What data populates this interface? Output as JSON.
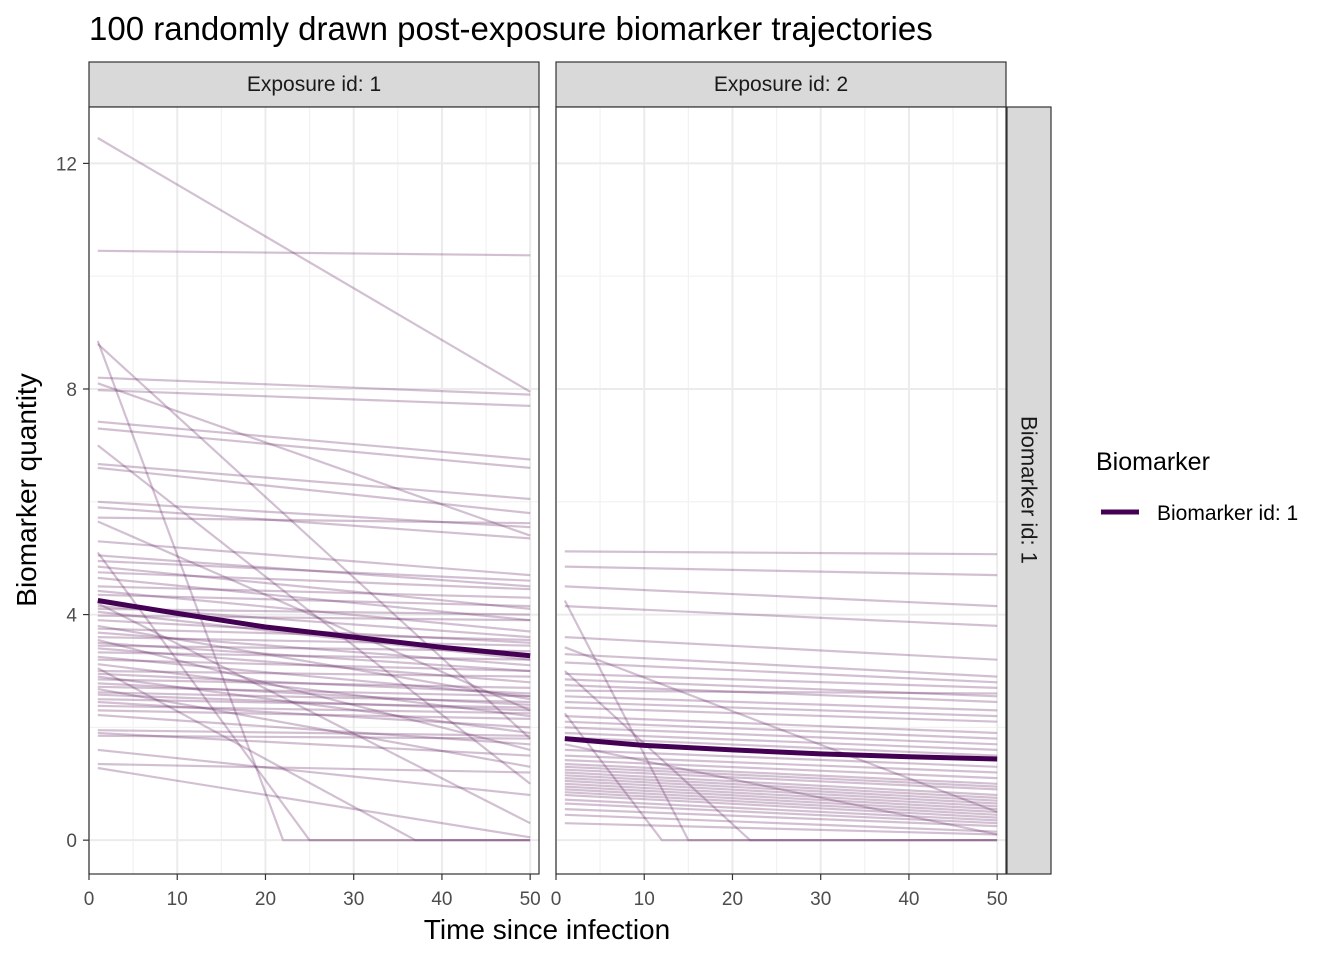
{
  "chart_data": {
    "type": "line",
    "title": "100 randomly drawn post-exposure biomarker trajectories",
    "xlabel": "Time since infection",
    "ylabel": "Biomarker quantity",
    "xlim": [
      0,
      51
    ],
    "ylim": [
      -0.6,
      13
    ],
    "x_ticks": [
      0,
      10,
      20,
      30,
      40,
      50
    ],
    "y_ticks": [
      0,
      4,
      8,
      12
    ],
    "grid": true,
    "legend": {
      "title": "Biomarker",
      "position": "right",
      "entries": [
        "Biomarker id: 1"
      ]
    },
    "row_strip": "Biomarker id: 1",
    "colors": {
      "trajectory": "#6b2d6b",
      "mean": "#440154",
      "strip": "#d9d9d9"
    },
    "panels": [
      {
        "strip": "Exposure id: 1",
        "mean": {
          "x": [
            1,
            10,
            20,
            30,
            40,
            50
          ],
          "y": [
            4.25,
            4.02,
            3.78,
            3.6,
            3.42,
            3.27
          ]
        },
        "trajectories": [
          {
            "x": [
              1,
              50
            ],
            "y": [
              12.45,
              7.95
            ]
          },
          {
            "x": [
              1,
              50
            ],
            "y": [
              10.45,
              10.37
            ]
          },
          {
            "x": [
              1,
              22,
              50
            ],
            "y": [
              8.85,
              0,
              0
            ]
          },
          {
            "x": [
              1,
              50
            ],
            "y": [
              8.8,
              1.8
            ]
          },
          {
            "x": [
              1,
              50
            ],
            "y": [
              8.2,
              7.9
            ]
          },
          {
            "x": [
              1,
              50
            ],
            "y": [
              8.1,
              5.4
            ]
          },
          {
            "x": [
              1,
              50
            ],
            "y": [
              7.98,
              7.7
            ]
          },
          {
            "x": [
              1,
              50
            ],
            "y": [
              7.42,
              6.75
            ]
          },
          {
            "x": [
              1,
              50
            ],
            "y": [
              7.3,
              6.6
            ]
          },
          {
            "x": [
              1,
              50
            ],
            "y": [
              7.0,
              1.0
            ]
          },
          {
            "x": [
              1,
              50
            ],
            "y": [
              6.67,
              6.05
            ]
          },
          {
            "x": [
              1,
              50
            ],
            "y": [
              6.6,
              5.8
            ]
          },
          {
            "x": [
              1,
              50
            ],
            "y": [
              6.0,
              5.55
            ]
          },
          {
            "x": [
              1,
              50
            ],
            "y": [
              5.9,
              5.35
            ]
          },
          {
            "x": [
              1,
              50
            ],
            "y": [
              5.72,
              5.62
            ]
          },
          {
            "x": [
              1,
              50
            ],
            "y": [
              5.65,
              2.3
            ]
          },
          {
            "x": [
              1,
              50
            ],
            "y": [
              5.3,
              4.7
            ]
          },
          {
            "x": [
              1,
              25,
              50
            ],
            "y": [
              5.1,
              0,
              0
            ]
          },
          {
            "x": [
              1,
              50
            ],
            "y": [
              5.05,
              4.5
            ]
          },
          {
            "x": [
              1,
              50
            ],
            "y": [
              4.95,
              4.6
            ]
          },
          {
            "x": [
              1,
              50
            ],
            "y": [
              4.85,
              4.1
            ]
          },
          {
            "x": [
              1,
              50
            ],
            "y": [
              4.75,
              4.45
            ]
          },
          {
            "x": [
              1,
              50
            ],
            "y": [
              4.65,
              3.9
            ]
          },
          {
            "x": [
              1,
              50
            ],
            "y": [
              4.5,
              4.3
            ]
          },
          {
            "x": [
              1,
              50
            ],
            "y": [
              4.42,
              3.7
            ]
          },
          {
            "x": [
              1,
              50
            ],
            "y": [
              4.35,
              4.15
            ]
          },
          {
            "x": [
              1,
              50
            ],
            "y": [
              4.2,
              0.3
            ]
          },
          {
            "x": [
              1,
              50
            ],
            "y": [
              4.15,
              3.6
            ]
          },
          {
            "x": [
              1,
              50
            ],
            "y": [
              4.1,
              4.0
            ]
          },
          {
            "x": [
              1,
              50
            ],
            "y": [
              4.05,
              3.2
            ]
          },
          {
            "x": [
              1,
              50
            ],
            "y": [
              3.98,
              3.9
            ]
          },
          {
            "x": [
              1,
              50
            ],
            "y": [
              3.9,
              3.5
            ]
          },
          {
            "x": [
              1,
              50
            ],
            "y": [
              3.8,
              2.5
            ]
          },
          {
            "x": [
              1,
              50
            ],
            "y": [
              3.75,
              3.55
            ]
          },
          {
            "x": [
              1,
              50
            ],
            "y": [
              3.68,
              3.1
            ]
          },
          {
            "x": [
              1,
              50
            ],
            "y": [
              3.6,
              3.45
            ]
          },
          {
            "x": [
              1,
              50
            ],
            "y": [
              3.55,
              1.6
            ]
          },
          {
            "x": [
              1,
              50
            ],
            "y": [
              3.5,
              3.0
            ]
          },
          {
            "x": [
              1,
              50
            ],
            "y": [
              3.45,
              3.35
            ]
          },
          {
            "x": [
              1,
              50
            ],
            "y": [
              3.4,
              2.8
            ]
          },
          {
            "x": [
              1,
              50
            ],
            "y": [
              3.33,
              3.2
            ]
          },
          {
            "x": [
              1,
              50
            ],
            "y": [
              3.25,
              2.55
            ]
          },
          {
            "x": [
              1,
              50
            ],
            "y": [
              3.2,
              3.0
            ]
          },
          {
            "x": [
              1,
              50
            ],
            "y": [
              3.12,
              2.2
            ]
          },
          {
            "x": [
              1,
              37,
              50
            ],
            "y": [
              3.05,
              0,
              0
            ]
          },
          {
            "x": [
              1,
              50
            ],
            "y": [
              3.0,
              2.9
            ]
          },
          {
            "x": [
              1,
              50
            ],
            "y": [
              2.95,
              2.6
            ]
          },
          {
            "x": [
              1,
              50
            ],
            "y": [
              2.9,
              1.9
            ]
          },
          {
            "x": [
              1,
              50
            ],
            "y": [
              2.85,
              2.7
            ]
          },
          {
            "x": [
              1,
              50
            ],
            "y": [
              2.78,
              2.4
            ]
          },
          {
            "x": [
              1,
              50
            ],
            "y": [
              2.72,
              2.55
            ]
          },
          {
            "x": [
              1,
              50
            ],
            "y": [
              2.68,
              1.3
            ]
          },
          {
            "x": [
              1,
              50
            ],
            "y": [
              2.62,
              2.45
            ]
          },
          {
            "x": [
              1,
              50
            ],
            "y": [
              2.58,
              2.3
            ]
          },
          {
            "x": [
              1,
              50
            ],
            "y": [
              2.5,
              2.35
            ]
          },
          {
            "x": [
              1,
              50
            ],
            "y": [
              2.45,
              2.0
            ]
          },
          {
            "x": [
              1,
              50
            ],
            "y": [
              2.38,
              2.25
            ]
          },
          {
            "x": [
              1,
              50
            ],
            "y": [
              2.3,
              2.15
            ]
          },
          {
            "x": [
              1,
              50
            ],
            "y": [
              2.22,
              1.7
            ]
          },
          {
            "x": [
              1,
              50
            ],
            "y": [
              1.95,
              1.85
            ]
          },
          {
            "x": [
              1,
              50
            ],
            "y": [
              1.9,
              1.5
            ]
          },
          {
            "x": [
              1,
              50
            ],
            "y": [
              1.85,
              1.8
            ]
          },
          {
            "x": [
              1,
              50
            ],
            "y": [
              1.6,
              0.8
            ]
          },
          {
            "x": [
              1,
              50
            ],
            "y": [
              1.35,
              1.2
            ]
          },
          {
            "x": [
              1,
              50
            ],
            "y": [
              1.28,
              0.05
            ]
          }
        ]
      },
      {
        "strip": "Exposure id: 2",
        "mean": {
          "x": [
            1,
            10,
            20,
            30,
            40,
            50
          ],
          "y": [
            1.8,
            1.68,
            1.6,
            1.53,
            1.48,
            1.44
          ]
        },
        "trajectories": [
          {
            "x": [
              1,
              50
            ],
            "y": [
              5.12,
              5.07
            ]
          },
          {
            "x": [
              1,
              50
            ],
            "y": [
              4.85,
              4.7
            ]
          },
          {
            "x": [
              1,
              50
            ],
            "y": [
              4.5,
              4.15
            ]
          },
          {
            "x": [
              1,
              15,
              50
            ],
            "y": [
              4.25,
              0,
              0
            ]
          },
          {
            "x": [
              1,
              50
            ],
            "y": [
              4.15,
              3.8
            ]
          },
          {
            "x": [
              1,
              50
            ],
            "y": [
              3.6,
              3.2
            ]
          },
          {
            "x": [
              1,
              50
            ],
            "y": [
              3.42,
              0.5
            ]
          },
          {
            "x": [
              1,
              50
            ],
            "y": [
              3.3,
              2.9
            ]
          },
          {
            "x": [
              1,
              50
            ],
            "y": [
              3.15,
              2.8
            ]
          },
          {
            "x": [
              1,
              22,
              50
            ],
            "y": [
              3.0,
              0,
              0
            ]
          },
          {
            "x": [
              1,
              50
            ],
            "y": [
              2.95,
              2.7
            ]
          },
          {
            "x": [
              1,
              50
            ],
            "y": [
              2.85,
              2.55
            ]
          },
          {
            "x": [
              1,
              50
            ],
            "y": [
              2.75,
              2.45
            ]
          },
          {
            "x": [
              1,
              50
            ],
            "y": [
              2.65,
              2.6
            ]
          },
          {
            "x": [
              1,
              50
            ],
            "y": [
              2.55,
              2.3
            ]
          },
          {
            "x": [
              1,
              50
            ],
            "y": [
              2.45,
              2.2
            ]
          },
          {
            "x": [
              1,
              50
            ],
            "y": [
              2.35,
              2.1
            ]
          },
          {
            "x": [
              1,
              12,
              50
            ],
            "y": [
              2.25,
              0,
              0
            ]
          },
          {
            "x": [
              1,
              50
            ],
            "y": [
              2.2,
              1.9
            ]
          },
          {
            "x": [
              1,
              50
            ],
            "y": [
              2.1,
              1.8
            ]
          },
          {
            "x": [
              1,
              50
            ],
            "y": [
              2.0,
              1.7
            ]
          },
          {
            "x": [
              1,
              50
            ],
            "y": [
              1.9,
              1.6
            ]
          },
          {
            "x": [
              1,
              50
            ],
            "y": [
              1.82,
              1.5
            ]
          },
          {
            "x": [
              1,
              50
            ],
            "y": [
              1.7,
              0.1
            ]
          },
          {
            "x": [
              1,
              50
            ],
            "y": [
              1.6,
              1.3
            ]
          },
          {
            "x": [
              1,
              50
            ],
            "y": [
              1.5,
              1.2
            ]
          },
          {
            "x": [
              1,
              50
            ],
            "y": [
              1.42,
              1.1
            ]
          },
          {
            "x": [
              1,
              50
            ],
            "y": [
              1.35,
              1.0
            ]
          },
          {
            "x": [
              1,
              50
            ],
            "y": [
              1.3,
              0.95
            ]
          },
          {
            "x": [
              1,
              50
            ],
            "y": [
              1.25,
              0.9
            ]
          },
          {
            "x": [
              1,
              50
            ],
            "y": [
              1.2,
              0.8
            ]
          },
          {
            "x": [
              1,
              50
            ],
            "y": [
              1.15,
              0.75
            ]
          },
          {
            "x": [
              1,
              50
            ],
            "y": [
              1.1,
              0.7
            ]
          },
          {
            "x": [
              1,
              50
            ],
            "y": [
              1.05,
              0.65
            ]
          },
          {
            "x": [
              1,
              50
            ],
            "y": [
              1.0,
              0.6
            ]
          },
          {
            "x": [
              1,
              50
            ],
            "y": [
              0.95,
              0.55
            ]
          },
          {
            "x": [
              1,
              50
            ],
            "y": [
              0.9,
              0.5
            ]
          },
          {
            "x": [
              1,
              50
            ],
            "y": [
              0.85,
              0.45
            ]
          },
          {
            "x": [
              1,
              50
            ],
            "y": [
              0.8,
              0.4
            ]
          },
          {
            "x": [
              1,
              50
            ],
            "y": [
              0.72,
              0.35
            ]
          },
          {
            "x": [
              1,
              50
            ],
            "y": [
              0.65,
              0.3
            ]
          },
          {
            "x": [
              1,
              50
            ],
            "y": [
              0.55,
              0.25
            ]
          },
          {
            "x": [
              1,
              50
            ],
            "y": [
              0.45,
              0.15
            ]
          },
          {
            "x": [
              1,
              50
            ],
            "y": [
              0.3,
              0.1
            ]
          }
        ]
      }
    ]
  }
}
